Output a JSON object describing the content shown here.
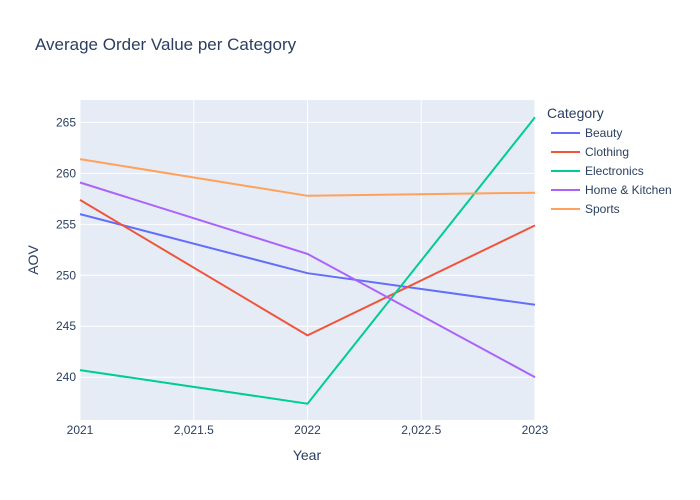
{
  "chart_data": {
    "type": "line",
    "title": "Average Order Value per Category",
    "xlabel": "Year",
    "ylabel": "AOV",
    "x": [
      2021,
      2022,
      2023
    ],
    "xlim": [
      2021,
      2023
    ],
    "ylim": [
      235.8,
      267.2
    ],
    "xticks": [
      2021,
      2021.5,
      2022,
      2022.5,
      2023
    ],
    "xtick_labels": [
      "2021",
      "2,021.5",
      "2022",
      "2,022.5",
      "2023"
    ],
    "yticks": [
      240,
      245,
      250,
      255,
      260,
      265
    ],
    "grid": true,
    "legend_title": "Category",
    "legend_position": "right",
    "plot_background": "#e5ecf6",
    "series": [
      {
        "name": "Beauty",
        "color": "#636efa",
        "values": [
          256.0,
          250.2,
          247.1
        ]
      },
      {
        "name": "Clothing",
        "color": "#ef553b",
        "values": [
          257.4,
          244.1,
          254.9
        ]
      },
      {
        "name": "Electronics",
        "color": "#00cc96",
        "values": [
          240.7,
          237.4,
          265.5
        ]
      },
      {
        "name": "Home & Kitchen",
        "color": "#ab63fa",
        "values": [
          259.1,
          252.1,
          240.0
        ]
      },
      {
        "name": "Sports",
        "color": "#ffa15a",
        "values": [
          261.4,
          257.8,
          258.1
        ]
      }
    ]
  }
}
